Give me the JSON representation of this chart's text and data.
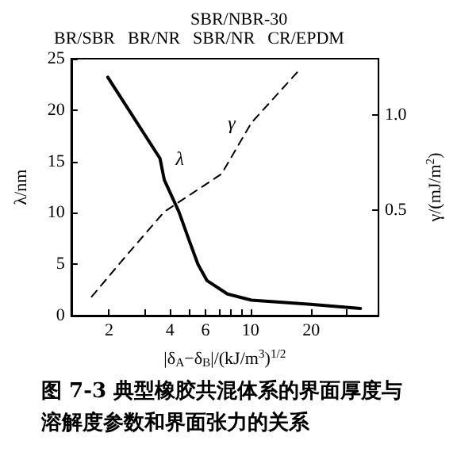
{
  "chart_data": {
    "type": "line",
    "xlabel": "|δ$_{A}$−δ$_{B}$|/(kJ/m$^{3}$)$^{1/2}$",
    "ylabel": "λ/nm",
    "y2label": "γ/(mJ/m$^{2}$)",
    "log": "x",
    "xlim": [
      1.3,
      43
    ],
    "xticks": [
      2,
      {
        "value": 3,
        "label": null
      },
      4,
      {
        "value": 5,
        "label": null
      },
      6,
      {
        "value": 7,
        "label": null
      },
      {
        "value": 8,
        "label": null
      },
      {
        "value": 9,
        "label": null
      },
      10,
      20,
      {
        "value": 30,
        "label": null
      }
    ],
    "ylim": [
      0,
      25
    ],
    "yticks": [
      0,
      5,
      10,
      15,
      20,
      25
    ],
    "y2lim": [
      -0.06,
      1.3
    ],
    "y2ticks": [
      0.5,
      {
        "value": 1,
        "label": "1.0"
      }
    ],
    "grid": false,
    "legend": false,
    "marker": "none",
    "series": [
      {
        "name": "λ",
        "color": "#000000",
        "line_style": "solid",
        "x": [
          1.97,
          3.57,
          3.75,
          4.43,
          4.94,
          5.5,
          6.1,
          7.7,
          10.1,
          19.8,
          35
        ],
        "values": [
          23.2,
          15.3,
          13.2,
          10.1,
          7.5,
          5.0,
          3.4,
          2.1,
          1.5,
          1.1,
          0.7
        ]
      },
      {
        "name": "γ",
        "color": "#000000",
        "line_style": "dashed",
        "axis": "y2",
        "x": [
          1.64,
          2.4,
          3.75,
          5.2,
          7.2,
          10.1,
          17.1
        ],
        "values": [
          0.04,
          0.25,
          0.49,
          0.59,
          0.69,
          0.96,
          1.23
        ]
      }
    ],
    "annotations": [
      "BR/SBR",
      "BR/NR",
      "SBR/NR",
      "CR/EPDM",
      "SBR/NBR-30",
      "图 7-3 典型橡胶共混体系的界面厚度与溶解度参数和界面张力的关系"
    ]
  }
}
